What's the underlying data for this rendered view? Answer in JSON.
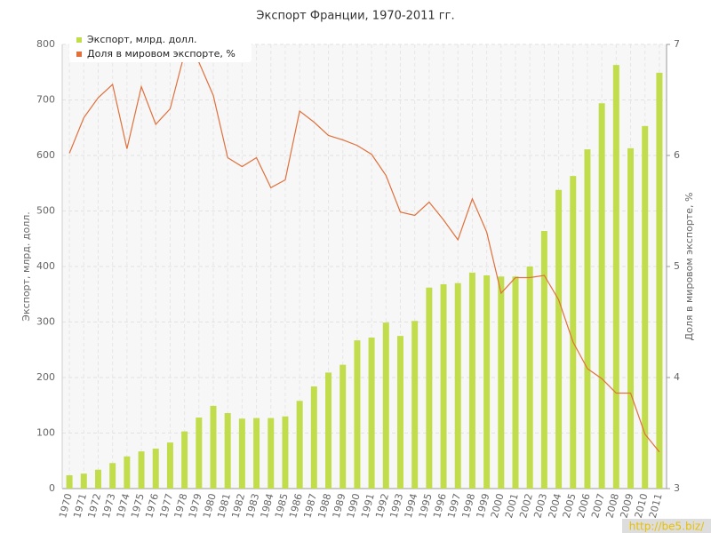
{
  "chart_data": {
    "type": "bar-line",
    "title": "Экспорт Франции, 1970-2011 гг.",
    "y_label": "Экспорт, млрд. долл.",
    "y2_label": "Доля в мировом экспорте, %",
    "watermark": "http://be5.biz/",
    "categories": [
      "1970",
      "1971",
      "1972",
      "1973",
      "1974",
      "1975",
      "1976",
      "1977",
      "1978",
      "1979",
      "1980",
      "1981",
      "1982",
      "1983",
      "1984",
      "1985",
      "1986",
      "1987",
      "1988",
      "1989",
      "1990",
      "1991",
      "1992",
      "1993",
      "1994",
      "1995",
      "1996",
      "1997",
      "1998",
      "1999",
      "2000",
      "2001",
      "2002",
      "2003",
      "2004",
      "2005",
      "2006",
      "2007",
      "2008",
      "2009",
      "2010",
      "2011"
    ],
    "series": [
      {
        "name": "Экспорт, млрд. долл.",
        "type": "bar",
        "color": "#c2dd4c",
        "values": [
          24,
          27,
          34,
          46,
          58,
          67,
          72,
          83,
          103,
          128,
          149,
          136,
          126,
          127,
          127,
          130,
          158,
          184,
          209,
          223,
          267,
          272,
          299,
          275,
          302,
          362,
          368,
          370,
          389,
          384,
          382,
          382,
          400,
          464,
          538,
          563,
          611,
          694,
          763,
          613,
          653,
          749
        ]
      },
      {
        "name": "Доля в мировом экспорте, %",
        "type": "line",
        "axis": "y2",
        "color": "#e0703c",
        "values": [
          6.02,
          6.34,
          6.52,
          6.64,
          6.06,
          6.62,
          6.28,
          6.42,
          6.92,
          6.84,
          6.54,
          5.98,
          5.9,
          5.98,
          5.71,
          5.78,
          6.4,
          6.3,
          6.18,
          6.14,
          6.09,
          6.01,
          5.82,
          5.49,
          5.46,
          5.58,
          5.42,
          5.24,
          5.61,
          5.31,
          4.76,
          4.9,
          4.9,
          4.92,
          4.7,
          4.32,
          4.08,
          3.99,
          3.86,
          3.86,
          3.49,
          3.33
        ]
      }
    ],
    "ylim": [
      0,
      800
    ],
    "yticks": [
      0,
      100,
      200,
      300,
      400,
      500,
      600,
      700,
      800
    ],
    "y2lim": [
      3,
      7
    ],
    "y2ticks": [
      3,
      4,
      5,
      6,
      7
    ],
    "grid": true,
    "legend": "top-left"
  }
}
